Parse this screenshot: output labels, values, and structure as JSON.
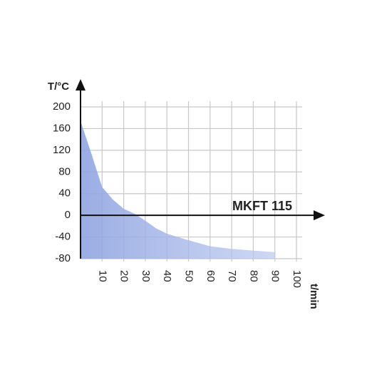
{
  "chart_data": {
    "type": "area",
    "y_label": "T/°C",
    "x_label": "t/min",
    "x": [
      0,
      5,
      10,
      15,
      20,
      25,
      30,
      35,
      40,
      50,
      60,
      70,
      80,
      90
    ],
    "series": [
      {
        "name": "MKFT 115",
        "color": "#9aaee4",
        "values": [
          174,
          114,
          52,
          29,
          12,
          3,
          -10,
          -24,
          -34,
          -46,
          -57,
          -62,
          -65,
          -68
        ]
      }
    ],
    "xlim": [
      0,
      100
    ],
    "xticks": [
      10,
      20,
      30,
      40,
      50,
      60,
      70,
      80,
      90,
      100
    ],
    "ylim": [
      -80,
      200
    ],
    "yticks": [
      200,
      160,
      120,
      80,
      40,
      0,
      -40,
      -80
    ],
    "grid": true
  }
}
